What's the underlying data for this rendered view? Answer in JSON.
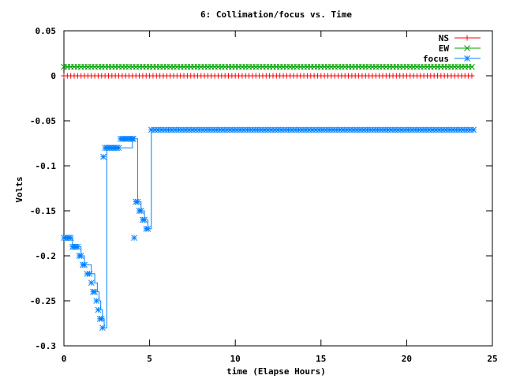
{
  "chart_data": {
    "type": "line",
    "title": "6: Collimation/focus vs. Time",
    "xlabel": "time (Elapse Hours)",
    "ylabel": "Volts",
    "xlim": [
      0,
      25
    ],
    "ylim": [
      -0.3,
      0.05
    ],
    "xticks": [
      0,
      5,
      10,
      15,
      20,
      25
    ],
    "xtick_labels": [
      "0",
      "5",
      "10",
      "15",
      "20",
      "25"
    ],
    "yticks": [
      0.05,
      0,
      -0.05,
      -0.1,
      -0.15,
      -0.2,
      -0.25,
      -0.3
    ],
    "ytick_labels": [
      "0.05",
      "0",
      "-0.05",
      "-0.1",
      "-0.15",
      "-0.2",
      "-0.25",
      "-0.3"
    ],
    "grid": false,
    "legend_position": "top-right",
    "series": [
      {
        "name": "NS",
        "color": "#ff0000",
        "marker": "plus",
        "style": "steps",
        "x": [
          0,
          23.9
        ],
        "y": [
          0,
          0
        ],
        "marker_interval": 0.2
      },
      {
        "name": "EW",
        "color": "#00a000",
        "marker": "cross",
        "style": "steps",
        "x": [
          0,
          23.9
        ],
        "y": [
          0.01,
          0.01
        ],
        "marker_interval": 0.2
      },
      {
        "name": "focus",
        "color": "#0080ff",
        "marker": "star",
        "style": "steps",
        "x": [
          0,
          0.4,
          0.5,
          0.9,
          1.0,
          1.2,
          1.5,
          1.6,
          1.8,
          1.95,
          2.05,
          2.15,
          2.25,
          2.35,
          2.5,
          3.3,
          4.0,
          4.15,
          4.3,
          4.5,
          4.7,
          4.9,
          5.1,
          23.9
        ],
        "y": [
          -0.18,
          -0.18,
          -0.19,
          -0.19,
          -0.2,
          -0.21,
          -0.21,
          -0.22,
          -0.23,
          -0.24,
          -0.25,
          -0.26,
          -0.27,
          -0.28,
          -0.08,
          -0.08,
          -0.07,
          -0.07,
          -0.14,
          -0.15,
          -0.16,
          -0.17,
          -0.06,
          -0.06
        ],
        "markers": [
          [
            0,
            -0.18
          ],
          [
            0.1,
            -0.18
          ],
          [
            0.2,
            -0.18
          ],
          [
            0.3,
            -0.18
          ],
          [
            0.4,
            -0.18
          ],
          [
            0.5,
            -0.19
          ],
          [
            0.6,
            -0.19
          ],
          [
            0.7,
            -0.19
          ],
          [
            0.8,
            -0.19
          ],
          [
            0.9,
            -0.2
          ],
          [
            1.0,
            -0.2
          ],
          [
            1.1,
            -0.21
          ],
          [
            1.2,
            -0.21
          ],
          [
            1.35,
            -0.22
          ],
          [
            1.5,
            -0.22
          ],
          [
            1.6,
            -0.23
          ],
          [
            1.7,
            -0.24
          ],
          [
            1.8,
            -0.24
          ],
          [
            1.9,
            -0.25
          ],
          [
            2.0,
            -0.26
          ],
          [
            2.1,
            -0.27
          ],
          [
            2.2,
            -0.27
          ],
          [
            2.25,
            -0.28
          ],
          [
            2.3,
            -0.09
          ],
          [
            2.4,
            -0.08
          ],
          [
            2.5,
            -0.08
          ],
          [
            2.6,
            -0.08
          ],
          [
            2.7,
            -0.08
          ],
          [
            2.8,
            -0.08
          ],
          [
            2.9,
            -0.08
          ],
          [
            3.0,
            -0.08
          ],
          [
            3.1,
            -0.08
          ],
          [
            3.2,
            -0.08
          ],
          [
            3.3,
            -0.07
          ],
          [
            3.4,
            -0.07
          ],
          [
            3.5,
            -0.07
          ],
          [
            3.6,
            -0.07
          ],
          [
            3.7,
            -0.07
          ],
          [
            3.8,
            -0.07
          ],
          [
            3.9,
            -0.07
          ],
          [
            4.0,
            -0.07
          ],
          [
            4.05,
            -0.07
          ],
          [
            4.1,
            -0.18
          ],
          [
            4.2,
            -0.14
          ],
          [
            4.3,
            -0.14
          ],
          [
            4.4,
            -0.15
          ],
          [
            4.5,
            -0.15
          ],
          [
            4.6,
            -0.16
          ],
          [
            4.7,
            -0.16
          ],
          [
            4.8,
            -0.17
          ],
          [
            4.9,
            -0.17
          ]
        ],
        "marker_interval_after": [
          5.1,
          0.2
        ]
      }
    ]
  }
}
